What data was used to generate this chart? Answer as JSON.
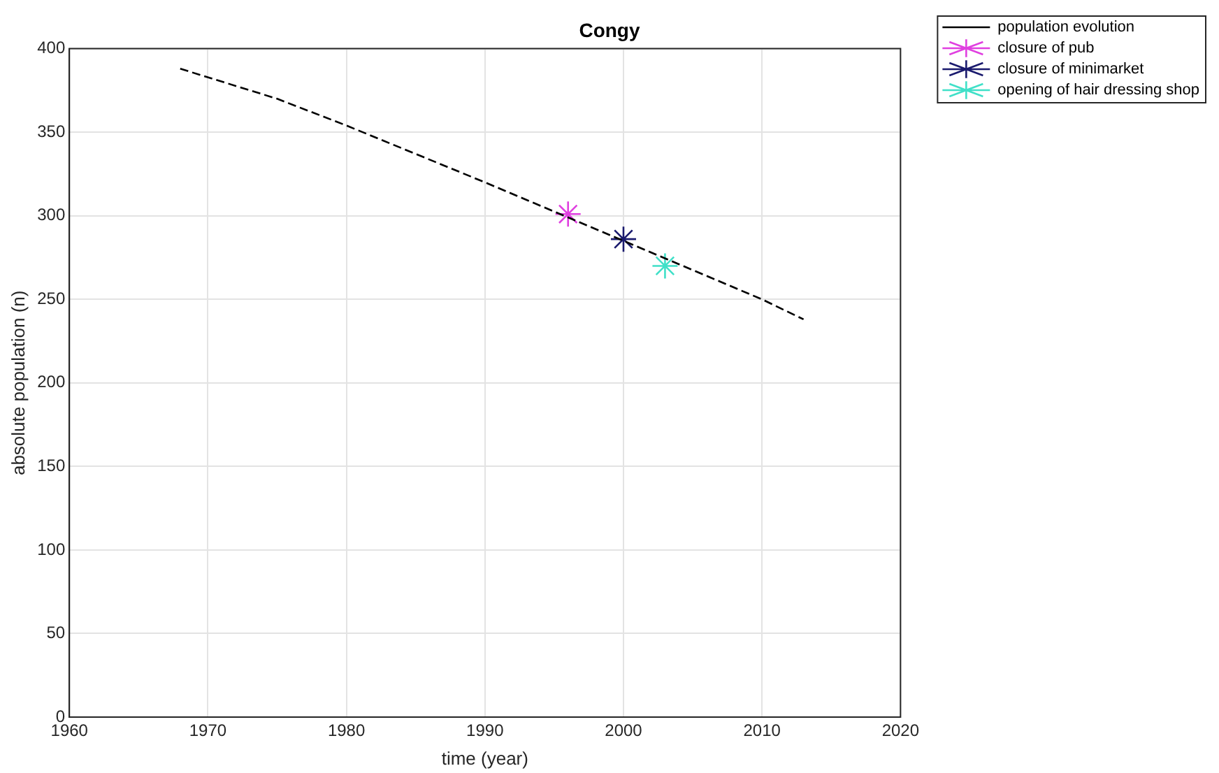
{
  "chart_data": {
    "type": "line",
    "title": "Congy",
    "xlabel": "time (year)",
    "ylabel": "absolute population (n)",
    "xlim": [
      1960,
      2020
    ],
    "xticks": [
      1960,
      1970,
      1980,
      1990,
      2000,
      2010,
      2020
    ],
    "ylim": [
      0,
      400
    ],
    "yticks": [
      0,
      50,
      100,
      150,
      200,
      250,
      300,
      350,
      400
    ],
    "grid": true,
    "legend": "top right",
    "series": [
      {
        "name": "population evolution",
        "type": "line",
        "color": "#000000",
        "line_style": "dashed",
        "marker": "none",
        "x": [
          1968,
          1975,
          1980,
          1990,
          2000,
          2010,
          2013
        ],
        "values": [
          388,
          370,
          354,
          320,
          285,
          250,
          238
        ]
      },
      {
        "name": "closure of pub",
        "type": "scatter",
        "color": "#e040e0",
        "marker": "cross",
        "x": [
          1996
        ],
        "values": [
          301
        ]
      },
      {
        "name": "closure of minimarket",
        "type": "scatter",
        "color": "#1a1a6e",
        "marker": "cross",
        "x": [
          2000
        ],
        "values": [
          286
        ]
      },
      {
        "name": "opening of hair dressing shop",
        "type": "scatter",
        "color": "#40e0c8",
        "marker": "cross",
        "x": [
          2003
        ],
        "values": [
          270
        ]
      }
    ]
  }
}
